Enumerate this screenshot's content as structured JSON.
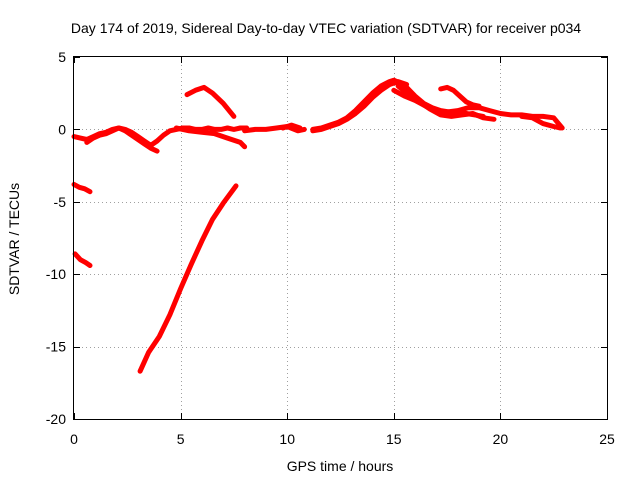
{
  "chart_data": {
    "type": "line",
    "title": "Day 174 of 2019, Sidereal Day-to-day VTEC variation (SDTVAR) for receiver p034",
    "xlabel": "GPS time / hours",
    "ylabel": "SDTVAR / TECUs",
    "xlim": [
      0,
      25
    ],
    "ylim": [
      -20,
      5
    ],
    "xticks": [
      0,
      5,
      10,
      15,
      20,
      25
    ],
    "yticks": [
      -20,
      -15,
      -10,
      -5,
      0,
      5
    ],
    "grid": true,
    "series_color": "#ff0000",
    "series": [
      {
        "name": "main-arc-a",
        "x": [
          0.0,
          0.3,
          0.6,
          0.9,
          1.2,
          1.5,
          1.8,
          2.1,
          2.4,
          2.7,
          3.0,
          3.3,
          3.6,
          3.9,
          4.2,
          4.5,
          4.8,
          5.1,
          5.4,
          5.7,
          6.0,
          6.3,
          6.6,
          6.9,
          7.2,
          7.5,
          7.8,
          8.1
        ],
        "y": [
          -0.5,
          -0.6,
          -0.7,
          -0.5,
          -0.3,
          -0.2,
          0.0,
          0.1,
          0.0,
          -0.2,
          -0.5,
          -0.8,
          -1.1,
          -0.8,
          -0.4,
          -0.1,
          0.0,
          0.1,
          0.1,
          0.0,
          0.0,
          0.1,
          0.0,
          0.0,
          0.1,
          0.0,
          0.1,
          0.1
        ]
      },
      {
        "name": "main-arc-b",
        "x": [
          0.6,
          0.9,
          1.2,
          1.5,
          1.8,
          2.1,
          2.4,
          2.7,
          3.0,
          3.3,
          3.6,
          3.9
        ],
        "y": [
          -0.9,
          -0.6,
          -0.4,
          -0.3,
          -0.1,
          0.1,
          -0.1,
          -0.4,
          -0.7,
          -1.0,
          -1.3,
          -1.5
        ]
      },
      {
        "name": "descending-arc",
        "x": [
          4.8,
          5.4,
          6.0,
          6.6,
          7.2,
          7.8,
          8.0
        ],
        "y": [
          0.1,
          -0.1,
          -0.2,
          -0.3,
          -0.6,
          -0.9,
          -1.2
        ]
      },
      {
        "name": "mid-arc-a",
        "x": [
          8.0,
          8.5,
          9.0,
          9.5,
          10.0,
          10.5,
          10.8
        ],
        "y": [
          -0.1,
          0.0,
          0.0,
          0.1,
          0.2,
          -0.1,
          0.0
        ]
      },
      {
        "name": "mid-arc-b",
        "x": [
          9.8,
          10.2,
          10.6
        ],
        "y": [
          0.1,
          0.3,
          0.1
        ]
      },
      {
        "name": "rise-arc-a",
        "x": [
          11.2,
          11.6,
          12.0,
          12.4,
          12.8,
          13.2,
          13.6,
          14.0,
          14.4,
          14.8,
          15.0,
          15.3,
          15.6,
          16.0,
          16.4,
          16.8,
          17.2,
          17.6,
          18.0,
          18.4,
          18.8,
          19.2
        ],
        "y": [
          0.0,
          0.1,
          0.3,
          0.5,
          0.8,
          1.3,
          1.9,
          2.5,
          3.0,
          3.3,
          3.4,
          3.2,
          2.9,
          2.3,
          1.8,
          1.5,
          1.3,
          1.2,
          1.2,
          1.1,
          1.0,
          0.9
        ]
      },
      {
        "name": "rise-arc-b",
        "x": [
          11.2,
          11.6,
          12.0,
          12.4,
          12.8,
          13.2,
          13.6,
          14.0,
          14.4,
          14.8,
          15.2,
          15.6
        ],
        "y": [
          -0.1,
          0.0,
          0.2,
          0.4,
          0.7,
          1.1,
          1.6,
          2.2,
          2.7,
          3.1,
          3.3,
          3.1
        ]
      },
      {
        "name": "hump-arc-a",
        "x": [
          15.0,
          15.5,
          16.0,
          16.5,
          17.0,
          17.5,
          18.0,
          18.5,
          19.0,
          19.5,
          20.0,
          20.5,
          21.0,
          21.5,
          22.0,
          22.5,
          22.9
        ],
        "y": [
          2.7,
          2.3,
          2.0,
          1.6,
          1.3,
          1.2,
          1.3,
          1.5,
          1.5,
          1.3,
          1.1,
          1.0,
          1.0,
          0.9,
          0.9,
          0.8,
          0.1
        ]
      },
      {
        "name": "hump-arc-b",
        "x": [
          15.2,
          15.7,
          16.2,
          16.7,
          17.2,
          17.7,
          18.2,
          18.7,
          19.2,
          19.7
        ],
        "y": [
          3.0,
          2.4,
          1.9,
          1.4,
          1.0,
          0.9,
          1.0,
          1.1,
          0.8,
          0.7
        ]
      },
      {
        "name": "bump-arc",
        "x": [
          17.2,
          17.5,
          17.8,
          18.1,
          18.4,
          18.7,
          19.0
        ],
        "y": [
          2.8,
          2.9,
          2.7,
          2.3,
          1.9,
          1.7,
          1.6
        ]
      },
      {
        "name": "tail-arc",
        "x": [
          21.0,
          21.5,
          22.0,
          22.5,
          22.8
        ],
        "y": [
          0.9,
          0.8,
          0.4,
          0.2,
          0.1
        ]
      },
      {
        "name": "upper-short-arc",
        "x": [
          5.3,
          5.7,
          6.1,
          6.5,
          7.0,
          7.5
        ],
        "y": [
          2.4,
          2.7,
          2.9,
          2.5,
          1.8,
          0.9
        ]
      },
      {
        "name": "short-arc-neg4",
        "x": [
          0.0,
          0.25,
          0.5,
          0.75
        ],
        "y": [
          -3.8,
          -4.0,
          -4.1,
          -4.3
        ]
      },
      {
        "name": "short-arc-neg9",
        "x": [
          0.05,
          0.3,
          0.55,
          0.75
        ],
        "y": [
          -8.6,
          -9.0,
          -9.2,
          -9.4
        ]
      },
      {
        "name": "steep-arc",
        "x": [
          3.1,
          3.5,
          4.0,
          4.5,
          5.0,
          5.5,
          6.0,
          6.5,
          7.0,
          7.6
        ],
        "y": [
          -16.7,
          -15.4,
          -14.3,
          -12.8,
          -11.0,
          -9.3,
          -7.7,
          -6.2,
          -5.1,
          -3.9
        ]
      }
    ]
  }
}
